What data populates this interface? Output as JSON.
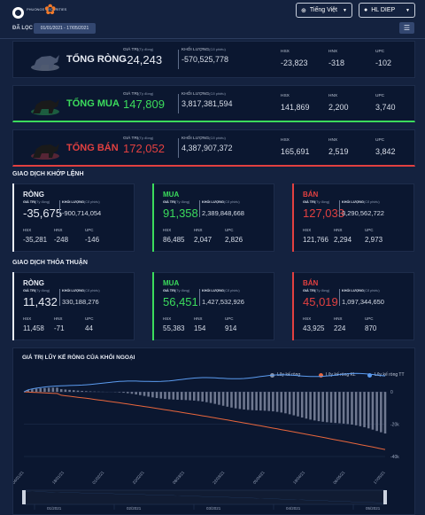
{
  "header": {
    "logo_text": "PHUONGS\nSECURITIES",
    "language": "Tiếng Việt",
    "user": "HL DIEP"
  },
  "filter": {
    "label": "ĐÃ LỌC",
    "date_range": "01/01/2021 - 17/05/2021"
  },
  "summary": [
    {
      "title": "TỔNG RÒNG",
      "value_label": "GIÁ TRỊ",
      "value_unit": "(Tỷ đồng)",
      "value": "-24,243",
      "vol_label": "KHỐI LƯỢNG",
      "vol_unit": "(Cổ phiếu)",
      "volume": "-570,525,778",
      "hsx": "-23,823",
      "hnx": "-318",
      "upc": "-102",
      "color": "#e8ecf4"
    },
    {
      "title": "TỔNG MUA",
      "value_label": "GIÁ TRỊ",
      "value_unit": "(Tỷ đồng)",
      "value": "147,809",
      "vol_label": "KHỐI LƯỢNG",
      "vol_unit": "(Cổ phiếu)",
      "volume": "3,817,381,594",
      "hsx": "141,869",
      "hnx": "2,200",
      "upc": "3,740",
      "color": "#3bdc5c"
    },
    {
      "title": "TỔNG BÁN",
      "value_label": "GIÁ TRỊ",
      "value_unit": "(Tỷ đồng)",
      "value": "172,052",
      "vol_label": "KHỐI LƯỢNG",
      "vol_unit": "(Cổ phiếu)",
      "volume": "4,387,907,372",
      "hsx": "165,691",
      "hnx": "2,519",
      "upc": "3,842",
      "color": "#e24040"
    }
  ],
  "labels": {
    "hsx": "HSX",
    "hnx": "HNX",
    "upc": "UPC"
  },
  "khop_lenh": {
    "title": "GIAO DỊCH KHỚP LỆNH",
    "cards": [
      {
        "title": "RÒNG",
        "value": "-35,675",
        "volume": "-900,714,054",
        "hsx": "-35,281",
        "hnx": "-248",
        "upc": "-146",
        "color": "#e8ecf4"
      },
      {
        "title": "MUA",
        "value": "91,358",
        "volume": "2,389,848,668",
        "hsx": "86,485",
        "hnx": "2,047",
        "upc": "2,826",
        "color": "#3bdc5c"
      },
      {
        "title": "BÁN",
        "value": "127,033",
        "volume": "3,290,562,722",
        "hsx": "121,766",
        "hnx": "2,294",
        "upc": "2,973",
        "color": "#e24040"
      }
    ]
  },
  "thoa_thuan": {
    "title": "GIAO DỊCH THỎA THUẬN",
    "cards": [
      {
        "title": "RÒNG",
        "value": "11,432",
        "volume": "330,188,276",
        "hsx": "11,458",
        "hnx": "-71",
        "upc": "44",
        "color": "#e8ecf4"
      },
      {
        "title": "MUA",
        "value": "56,451",
        "volume": "1,427,532,926",
        "hsx": "55,383",
        "hnx": "154",
        "upc": "914",
        "color": "#3bdc5c"
      },
      {
        "title": "BÁN",
        "value": "45,019",
        "volume": "1,097,344,650",
        "hsx": "43,925",
        "hnx": "224",
        "upc": "870",
        "color": "#e24040"
      }
    ]
  },
  "card_labels": {
    "value_label": "GIÁ TRỊ",
    "value_unit": "(Tỷ đồng)",
    "vol_label": "KHỐI LƯỢNG",
    "vol_unit": "(Cổ phiếu)"
  },
  "chart": {
    "title": "GIÁ TRỊ LŨY KẾ RÒNG CỦA KHỐI NGOẠI",
    "legend": [
      {
        "name": "Lũy kế ròng",
        "color": "#8a93a6"
      },
      {
        "name": "Lũy kế ròng KL",
        "color": "#e8663c"
      },
      {
        "name": "Lũy kế ròng TT",
        "color": "#5b9bef"
      }
    ],
    "ytick_labels": [
      "0",
      "-20k",
      "-40k"
    ],
    "xtick_labels": [
      "04/01/21",
      "18/01/21",
      "01/02/21",
      "22/02/21",
      "08/03/21",
      "22/03/21",
      "05/04/21",
      "19/04/21",
      "06/05/21",
      "17/05/21"
    ],
    "navigator_labels": [
      "01/2021",
      "02/2021",
      "03/2021",
      "04/2021",
      "05/2021"
    ]
  },
  "chart_data": {
    "type": "line",
    "ylim": [
      -40000,
      5000
    ],
    "n_points": 88,
    "series": [
      {
        "name": "Lũy kế ròng",
        "kind": "bar",
        "start": 0,
        "end": -24243
      },
      {
        "name": "Lũy kế ròng KL",
        "kind": "line",
        "start": 0,
        "end": -35675
      },
      {
        "name": "Lũy kế ròng TT",
        "kind": "line",
        "start": 0,
        "end": 11432
      }
    ]
  }
}
